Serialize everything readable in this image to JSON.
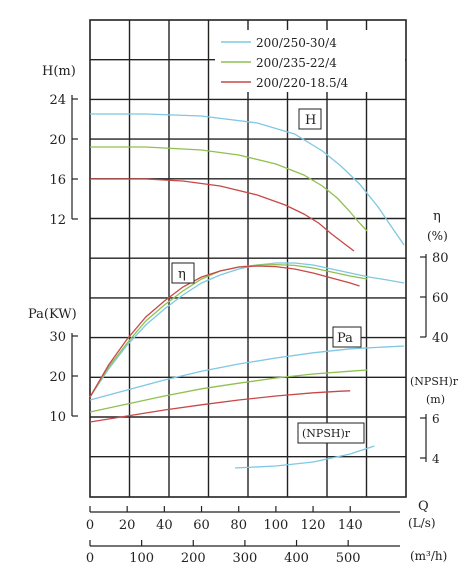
{
  "chart_data": {
    "type": "line",
    "series": [
      {
        "name": "200/250-30/4",
        "color": "#7ec8e3",
        "H": [
          [
            0,
            22.5
          ],
          [
            30,
            22.5
          ],
          [
            60,
            22.3
          ],
          [
            90,
            21.6
          ],
          [
            110,
            20.5
          ],
          [
            125,
            18.8
          ],
          [
            135,
            17.3
          ],
          [
            145,
            15.5
          ],
          [
            155,
            13.2
          ],
          [
            163,
            11.0
          ],
          [
            169,
            9.4
          ]
        ],
        "eta": [
          [
            0,
            10
          ],
          [
            10,
            24
          ],
          [
            20,
            36
          ],
          [
            30,
            46
          ],
          [
            40,
            54
          ],
          [
            50,
            61
          ],
          [
            60,
            67
          ],
          [
            70,
            71
          ],
          [
            80,
            74
          ],
          [
            90,
            76
          ],
          [
            100,
            77
          ],
          [
            110,
            77
          ],
          [
            120,
            76
          ],
          [
            130,
            74
          ],
          [
            140,
            72
          ],
          [
            150,
            70
          ],
          [
            160,
            68.5
          ],
          [
            169,
            67
          ]
        ],
        "Pa": [
          [
            0,
            14
          ],
          [
            20,
            16.5
          ],
          [
            40,
            19
          ],
          [
            60,
            21.2
          ],
          [
            80,
            23
          ],
          [
            100,
            24.5
          ],
          [
            120,
            25.8
          ],
          [
            140,
            26.8
          ],
          [
            169,
            27.5
          ]
        ],
        "NPSH": [
          [
            78,
            3.5
          ],
          [
            100,
            3.6
          ],
          [
            120,
            3.8
          ],
          [
            140,
            4.2
          ],
          [
            153,
            4.6
          ]
        ]
      },
      {
        "name": "200/235-22/4",
        "color": "#8fc050",
        "H": [
          [
            0,
            19.2
          ],
          [
            30,
            19.2
          ],
          [
            60,
            18.9
          ],
          [
            80,
            18.4
          ],
          [
            100,
            17.5
          ],
          [
            115,
            16.4
          ],
          [
            125,
            15.3
          ],
          [
            133,
            14.1
          ],
          [
            139,
            12.9
          ],
          [
            145,
            11.6
          ],
          [
            149,
            10.8
          ]
        ],
        "eta": [
          [
            0,
            10
          ],
          [
            10,
            25
          ],
          [
            20,
            37
          ],
          [
            30,
            48
          ],
          [
            40,
            56
          ],
          [
            50,
            63
          ],
          [
            60,
            69
          ],
          [
            70,
            73
          ],
          [
            80,
            75
          ],
          [
            90,
            76
          ],
          [
            100,
            76.2
          ],
          [
            110,
            75.8
          ],
          [
            120,
            74.5
          ],
          [
            130,
            72.5
          ],
          [
            140,
            70.5
          ],
          [
            149,
            69
          ]
        ],
        "Pa": [
          [
            0,
            11
          ],
          [
            20,
            13
          ],
          [
            40,
            15
          ],
          [
            60,
            16.8
          ],
          [
            80,
            18.2
          ],
          [
            100,
            19.5
          ],
          [
            120,
            20.5
          ],
          [
            140,
            21.2
          ],
          [
            149,
            21.5
          ]
        ]
      },
      {
        "name": "200/220-18.5/4",
        "color": "#c84848",
        "H": [
          [
            0,
            16
          ],
          [
            30,
            16
          ],
          [
            50,
            15.8
          ],
          [
            70,
            15.3
          ],
          [
            90,
            14.4
          ],
          [
            105,
            13.4
          ],
          [
            115,
            12.5
          ],
          [
            123,
            11.6
          ],
          [
            130,
            10.5
          ],
          [
            137,
            9.5
          ],
          [
            142,
            8.8
          ]
        ],
        "eta": [
          [
            0,
            10
          ],
          [
            10,
            26
          ],
          [
            20,
            39
          ],
          [
            30,
            50
          ],
          [
            40,
            58
          ],
          [
            50,
            65
          ],
          [
            60,
            70
          ],
          [
            70,
            73
          ],
          [
            80,
            75
          ],
          [
            90,
            75.5
          ],
          [
            100,
            75.2
          ],
          [
            110,
            74
          ],
          [
            120,
            72
          ],
          [
            130,
            69.5
          ],
          [
            140,
            67
          ],
          [
            145,
            65.5
          ]
        ],
        "Pa": [
          [
            0,
            8.5
          ],
          [
            20,
            10
          ],
          [
            40,
            11.5
          ],
          [
            60,
            12.8
          ],
          [
            80,
            14
          ],
          [
            100,
            15
          ],
          [
            120,
            15.8
          ],
          [
            135,
            16.2
          ],
          [
            140,
            16.3
          ]
        ]
      }
    ],
    "H_axis": {
      "label": "H(m)",
      "ticks": [
        "12",
        "16",
        "20",
        "24"
      ],
      "range": [
        12,
        24
      ]
    },
    "eta_axis": {
      "label_top": "η",
      "label_unit": "(%)",
      "ticks": [
        "40",
        "60",
        "80"
      ],
      "range": [
        40,
        80
      ]
    },
    "Pa_axis": {
      "label": "Pa(KW)",
      "ticks": [
        "10",
        "20",
        "30"
      ],
      "range": [
        10,
        30
      ]
    },
    "NPSH_axis": {
      "label": "(NPSH)r",
      "unit": "(m)",
      "ticks": [
        "4",
        "6"
      ],
      "range": [
        4,
        6
      ]
    },
    "x_axis": {
      "label": "Q",
      "ticks": [
        "0",
        "20",
        "40",
        "60",
        "80",
        "100",
        "120",
        "140"
      ],
      "unit": "(L/s)",
      "range": [
        0,
        170
      ]
    },
    "x2_axis": {
      "ticks": [
        "0",
        "100",
        "200",
        "300",
        "400",
        "500"
      ],
      "unit": "(m³/h)",
      "factor": 3.6
    },
    "annotations": {
      "H": "H",
      "eta": "η",
      "Pa": "Pa",
      "NPSH": "(NPSH)r"
    },
    "grid": true,
    "legend_position": "top-right"
  }
}
